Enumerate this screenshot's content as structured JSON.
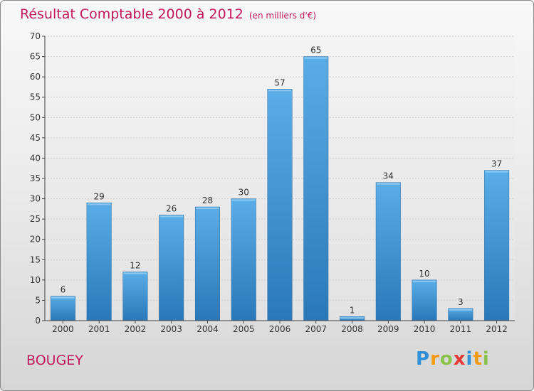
{
  "chart_data": {
    "type": "bar",
    "title": "Résultat Comptable 2000 à 2012",
    "subtitle": "(en milliers d'€)",
    "categories": [
      "2000",
      "2001",
      "2002",
      "2003",
      "2004",
      "2005",
      "2006",
      "2007",
      "2008",
      "2009",
      "2010",
      "2011",
      "2012"
    ],
    "values": [
      6,
      29,
      12,
      26,
      28,
      30,
      57,
      65,
      1,
      34,
      10,
      3,
      37
    ],
    "ylim": [
      0,
      70
    ],
    "yticks": [
      0,
      5,
      10,
      15,
      20,
      25,
      30,
      35,
      40,
      45,
      50,
      55,
      60,
      65,
      70
    ],
    "grid": true,
    "bar_color_top": "#5aade6",
    "bar_color_bottom": "#2a78b8"
  },
  "place": "BOUGEY",
  "logo": {
    "text": "Proxiti",
    "letters": [
      "P",
      "r",
      "o",
      "x",
      "i",
      "t",
      "i"
    ],
    "colors": [
      "#2f8fd8",
      "#f39c12",
      "#8bc34a",
      "#e53935",
      "#2f8fd8",
      "#f39c12",
      "#8bc34a"
    ]
  }
}
